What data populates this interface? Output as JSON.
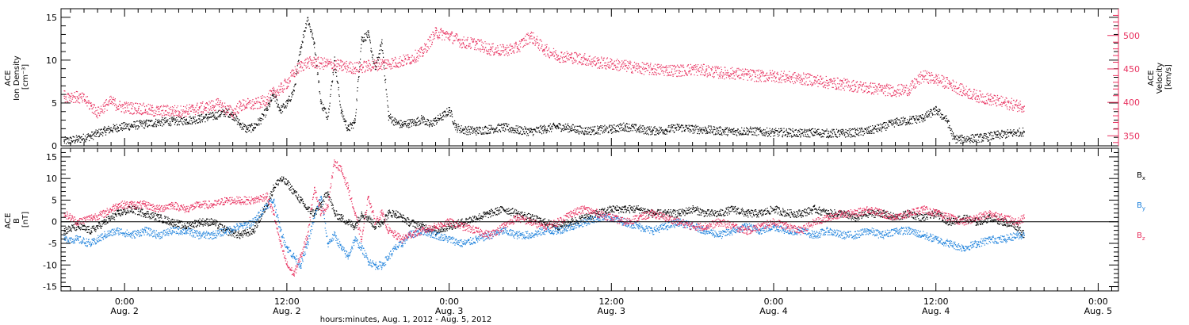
{
  "figure": {
    "xlabel": "hours:minutes, Aug. 1, 2012 - Aug. 5, 2012",
    "x_ticks": [
      {
        "hour": 24,
        "time": "0:00",
        "date": "Aug. 2"
      },
      {
        "hour": 36,
        "time": "12:00",
        "date": "Aug. 2"
      },
      {
        "hour": 48,
        "time": "0:00",
        "date": "Aug. 3"
      },
      {
        "hour": 60,
        "time": "12:00",
        "date": "Aug. 3"
      },
      {
        "hour": 72,
        "time": "0:00",
        "date": "Aug. 4"
      },
      {
        "hour": 84,
        "time": "12:00",
        "date": "Aug. 4"
      },
      {
        "hour": 96,
        "time": "0:00",
        "date": "Aug. 5"
      }
    ],
    "colors": {
      "black": "#000000",
      "pink": "#e8315f",
      "blue": "#1e82dc"
    }
  },
  "chart_data": [
    {
      "type": "scatter",
      "panel": "top",
      "x_unit": "hours since Aug. 1, 2012 00:00",
      "xlim": [
        19.3,
        97.5
      ],
      "grid": false,
      "left_axis": {
        "label_lines": [
          "ACE",
          "Ion Density",
          "[cm⁻³]"
        ],
        "ylim": [
          0,
          16
        ],
        "ticks": [
          "0",
          "5",
          "10",
          "15"
        ]
      },
      "right_axis": {
        "label_lines": [
          "ACE",
          "Velocity",
          "[km/s]"
        ],
        "ylim": [
          335,
          540
        ],
        "ticks": [
          "350",
          "400",
          "450",
          "500"
        ],
        "color": "#e8315f"
      },
      "series": [
        {
          "axis": "left",
          "color": "#000000",
          "x": [
            19.5,
            20.5,
            21.5,
            22.5,
            23.5,
            24.5,
            25.5,
            26.5,
            27.5,
            28.5,
            29.5,
            30.5,
            31.5,
            32,
            32.5,
            33,
            33.5,
            34,
            34.5,
            35,
            35.5,
            36,
            36.5,
            37,
            37.5,
            38,
            38.5,
            39,
            39.5,
            40,
            40.5,
            41,
            41.5,
            42,
            42.5,
            43,
            43.5,
            44,
            44.5,
            45,
            45.5,
            46,
            46.5,
            47,
            47.5,
            48,
            48.5,
            49,
            50,
            51,
            52,
            53,
            54,
            55,
            56,
            57,
            58,
            59,
            60,
            61,
            62,
            63,
            64,
            65,
            66,
            67,
            68,
            69,
            70,
            71,
            72,
            73,
            74,
            75,
            76,
            77,
            78,
            79,
            80,
            81,
            82,
            83,
            84,
            84.8,
            85.3,
            85.8,
            86.5,
            87.5,
            88.5,
            89.5,
            90.5
          ],
          "y": [
            0.6,
            0.8,
            1.2,
            1.8,
            2.2,
            2.4,
            2.6,
            2.8,
            2.9,
            3.0,
            3.2,
            3.5,
            4.0,
            3.6,
            2.6,
            2.0,
            2.2,
            3.0,
            4.2,
            6.0,
            4.2,
            5.0,
            6.5,
            11.5,
            15.0,
            12.0,
            5.0,
            3.5,
            10.0,
            4.0,
            2.0,
            2.8,
            12.5,
            13.0,
            9.0,
            12.0,
            3.5,
            2.8,
            2.5,
            2.7,
            2.8,
            3.2,
            2.5,
            3.0,
            3.5,
            4.2,
            2.2,
            1.9,
            1.8,
            2.0,
            2.2,
            1.9,
            1.7,
            2.0,
            2.3,
            2.1,
            1.8,
            1.9,
            2.0,
            2.3,
            2.0,
            1.8,
            1.9,
            2.2,
            2.0,
            1.9,
            1.8,
            1.7,
            1.8,
            1.7,
            1.6,
            1.6,
            1.5,
            1.6,
            1.5,
            1.5,
            1.6,
            1.8,
            2.2,
            2.8,
            3.0,
            3.3,
            4.2,
            3.0,
            0.9,
            0.8,
            0.9,
            1.0,
            1.3,
            1.5,
            1.7
          ]
        },
        {
          "axis": "right",
          "color": "#e8315f",
          "x": [
            19.5,
            20,
            20.5,
            21,
            21.5,
            22,
            22.5,
            23,
            23.5,
            24,
            24.5,
            25,
            25.5,
            26,
            26.5,
            27,
            27.5,
            28,
            28.5,
            29,
            29.5,
            30,
            30.5,
            31,
            31.5,
            32,
            32.5,
            33,
            33.5,
            34,
            34.5,
            35,
            35.5,
            36,
            36.5,
            37,
            37.5,
            38,
            39,
            40,
            41,
            42,
            43,
            44,
            45,
            46,
            47,
            48,
            49,
            50,
            51,
            52,
            53,
            54,
            55,
            56,
            57,
            58,
            59,
            60,
            61,
            62,
            63,
            64,
            65,
            66,
            67,
            68,
            69,
            70,
            71,
            72,
            73,
            74,
            75,
            76,
            77,
            78,
            79,
            80,
            81,
            82,
            83,
            84,
            85,
            86,
            87,
            88,
            89,
            90,
            90.5
          ],
          "y": [
            410,
            410,
            408,
            405,
            395,
            385,
            395,
            402,
            395,
            393,
            392,
            392,
            390,
            388,
            387,
            388,
            388,
            387,
            388,
            390,
            392,
            393,
            396,
            398,
            390,
            385,
            395,
            398,
            397,
            400,
            405,
            415,
            420,
            430,
            445,
            455,
            460,
            460,
            458,
            455,
            452,
            455,
            458,
            460,
            465,
            475,
            505,
            500,
            490,
            488,
            480,
            478,
            482,
            500,
            480,
            470,
            468,
            465,
            460,
            458,
            455,
            452,
            450,
            449,
            448,
            450,
            448,
            445,
            444,
            442,
            440,
            440,
            438,
            436,
            434,
            430,
            428,
            425,
            422,
            420,
            418,
            420,
            440,
            435,
            428,
            418,
            410,
            405,
            400,
            396,
            395
          ]
        }
      ]
    },
    {
      "type": "scatter",
      "panel": "bottom",
      "x_unit": "hours since Aug. 1, 2012 00:00",
      "xlim": [
        19.3,
        97.5
      ],
      "grid": false,
      "left_axis": {
        "label_lines": [
          "ACE",
          "B",
          "[nT]"
        ],
        "ylim": [
          -16,
          17
        ],
        "ticks": [
          "-15",
          "-10",
          "-5",
          "0",
          "5",
          "10",
          "15"
        ]
      },
      "zero_line": true,
      "legend_position": "right",
      "series": [
        {
          "name": "Bx",
          "color": "#000000",
          "x": [
            19.5,
            20.5,
            21.5,
            22.5,
            23.5,
            24.5,
            25.5,
            26.5,
            27.5,
            28.5,
            29.5,
            30.5,
            31.5,
            32.5,
            33.5,
            34.5,
            35,
            35.5,
            36,
            36.5,
            37,
            37.5,
            38,
            38.5,
            39,
            39.5,
            40,
            40.5,
            41,
            41.5,
            42,
            42.5,
            43,
            43.5,
            44,
            44.5,
            45,
            46,
            47,
            48,
            49,
            50,
            51,
            52,
            53,
            54,
            55,
            56,
            57,
            58,
            59,
            60,
            61,
            62,
            63,
            64,
            65,
            66,
            67,
            68,
            69,
            70,
            71,
            72,
            73,
            74,
            75,
            76,
            77,
            78,
            79,
            80,
            81,
            82,
            83,
            84,
            85,
            86,
            87,
            88,
            89,
            90,
            90.5
          ],
          "y": [
            -2,
            -1,
            -2,
            0,
            2,
            3,
            2,
            1,
            0,
            -1,
            0,
            0,
            -2,
            -3,
            -2,
            4,
            8,
            10,
            9,
            7,
            5,
            3,
            2,
            4,
            7,
            2,
            1,
            0,
            -1,
            2,
            1,
            -1,
            0,
            2,
            2,
            1,
            0,
            -1,
            -2,
            -1,
            0,
            1,
            2,
            3,
            2,
            1,
            0,
            -1,
            0,
            1,
            2,
            3,
            3,
            3,
            2,
            2,
            2,
            3,
            2,
            2,
            3,
            2,
            2,
            3,
            2,
            2,
            3,
            2,
            2,
            1,
            2,
            2,
            1,
            2,
            1,
            2,
            0,
            1,
            0,
            1,
            0,
            -1,
            -3
          ]
        },
        {
          "name": "By",
          "color": "#1e82dc",
          "x": [
            19.5,
            20.5,
            21.5,
            22.5,
            23.5,
            24.5,
            25.5,
            26.5,
            27.5,
            28.5,
            29.5,
            30.5,
            31.5,
            32.5,
            33.5,
            34.5,
            35,
            35.5,
            36,
            36.5,
            37,
            37.5,
            38,
            38.5,
            39,
            39.5,
            40,
            40.5,
            41,
            41.5,
            42,
            42.5,
            43,
            43.5,
            44,
            44.5,
            45,
            46,
            47,
            48,
            49,
            50,
            51,
            52,
            53,
            54,
            55,
            56,
            57,
            58,
            59,
            60,
            61,
            62,
            63,
            64,
            65,
            66,
            67,
            68,
            69,
            70,
            71,
            72,
            73,
            74,
            75,
            76,
            77,
            78,
            79,
            80,
            81,
            82,
            83,
            84,
            85,
            86,
            87,
            88,
            89,
            90,
            90.5
          ],
          "y": [
            -4,
            -4,
            -5,
            -3,
            -2,
            -3,
            -2,
            -3,
            -2,
            -2,
            -3,
            -3,
            -2,
            -1,
            0,
            4,
            5,
            -2,
            -6,
            -8,
            -10,
            -5,
            1,
            6,
            -5,
            -3,
            -6,
            -8,
            -4,
            -6,
            -9,
            -10,
            -10,
            -8,
            -6,
            -5,
            -3,
            -2,
            -3,
            -4,
            -5,
            -4,
            -3,
            -2,
            -3,
            -3,
            -2,
            -2,
            -1,
            0,
            1,
            1,
            0,
            -1,
            -2,
            -1,
            0,
            -1,
            -2,
            -3,
            -2,
            -1,
            -2,
            -1,
            -2,
            -2,
            -3,
            -2,
            -3,
            -3,
            -2,
            -3,
            -2,
            -2,
            -3,
            -4,
            -5,
            -6,
            -5,
            -4,
            -4,
            -3,
            -3
          ]
        },
        {
          "name": "Bz",
          "color": "#e8315f",
          "x": [
            19.5,
            20.5,
            21.5,
            22.5,
            23.5,
            24.5,
            25.5,
            26.5,
            27.5,
            28.5,
            29.5,
            30.5,
            31.5,
            32.5,
            33.5,
            34.5,
            35,
            35.5,
            36,
            36.5,
            37,
            37.5,
            38,
            38.5,
            39,
            39.5,
            40,
            40.5,
            41,
            41.5,
            42,
            42.5,
            43,
            43.5,
            44,
            44.5,
            45,
            46,
            47,
            48,
            49,
            50,
            51,
            52,
            53,
            54,
            55,
            56,
            57,
            58,
            59,
            60,
            61,
            62,
            63,
            64,
            65,
            66,
            67,
            68,
            69,
            70,
            71,
            72,
            73,
            74,
            75,
            76,
            77,
            78,
            79,
            80,
            81,
            82,
            83,
            84,
            85,
            86,
            87,
            88,
            89,
            90,
            90.5
          ],
          "y": [
            2,
            0,
            1,
            2,
            4,
            4,
            4,
            3,
            4,
            3,
            4,
            4,
            5,
            5,
            5,
            6,
            2,
            -5,
            -10,
            -12,
            -8,
            -3,
            8,
            2,
            4,
            14,
            12,
            8,
            2,
            -4,
            6,
            0,
            2,
            -2,
            -3,
            -4,
            -3,
            -2,
            -1,
            0,
            -1,
            -2,
            -3,
            -1,
            1,
            0,
            -1,
            0,
            2,
            3,
            2,
            1,
            0,
            1,
            2,
            1,
            0,
            -1,
            -1,
            0,
            -1,
            -2,
            -1,
            0,
            -1,
            -2,
            0,
            1,
            2,
            2,
            3,
            2,
            1,
            2,
            3,
            2,
            1,
            0,
            1,
            2,
            1,
            0,
            1
          ]
        }
      ]
    }
  ]
}
